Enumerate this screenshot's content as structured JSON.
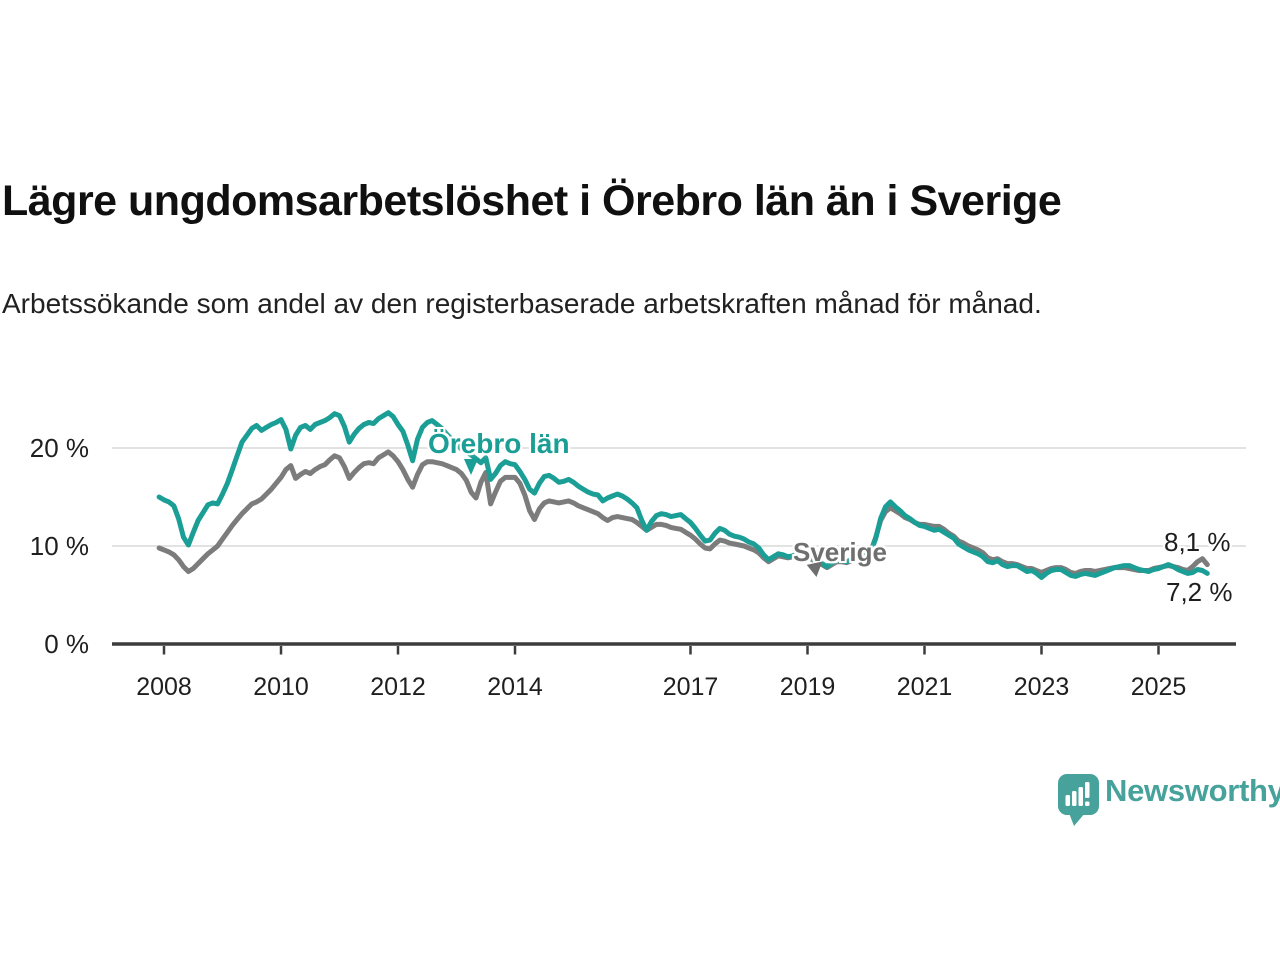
{
  "title": "Lägre ungdomsarbetslöshet i Örebro län än i Sverige",
  "subtitle": "Arbetssökande som andel av den registerbaserade arbetskraften månad för månad.",
  "branding": {
    "logo_text": "Newsworthy",
    "brand_color": "#46a29b"
  },
  "chart_data": {
    "type": "line",
    "x_start_year": 2007.917,
    "x_step_months": 1,
    "xlim": [
      2007.8,
      2026.2
    ],
    "ylim": [
      0,
      25
    ],
    "grid": true,
    "x_axis": {
      "ticks": [
        2008,
        2010,
        2012,
        2014,
        2017,
        2019,
        2021,
        2023,
        2025
      ]
    },
    "y_axis": {
      "ticks": [
        {
          "value": 0,
          "label": "0 %"
        },
        {
          "value": 10,
          "label": "10 %"
        },
        {
          "value": 20,
          "label": "20 %"
        }
      ]
    },
    "series": [
      {
        "name": "Sverige",
        "color": "#7c7c7c",
        "end_label": "8,1 %",
        "values": [
          9.8,
          9.6,
          9.4,
          9.1,
          8.6,
          7.9,
          7.4,
          7.7,
          8.2,
          8.7,
          9.2,
          9.6,
          10.0,
          10.7,
          11.4,
          12.1,
          12.7,
          13.3,
          13.8,
          14.3,
          14.5,
          14.8,
          15.3,
          15.8,
          16.4,
          17.0,
          17.8,
          18.2,
          16.9,
          17.3,
          17.6,
          17.4,
          17.8,
          18.1,
          18.3,
          18.8,
          19.2,
          19.0,
          18.1,
          16.9,
          17.5,
          18.0,
          18.4,
          18.5,
          18.4,
          19.0,
          19.3,
          19.6,
          19.2,
          18.6,
          17.8,
          16.8,
          16.0,
          17.3,
          18.3,
          18.6,
          18.6,
          18.5,
          18.4,
          18.2,
          18.0,
          17.8,
          17.4,
          16.7,
          15.5,
          14.9,
          16.5,
          17.5,
          14.3,
          15.5,
          16.6,
          17.0,
          17.0,
          17.0,
          16.4,
          15.2,
          13.6,
          12.7,
          13.8,
          14.4,
          14.6,
          14.5,
          14.4,
          14.5,
          14.6,
          14.4,
          14.1,
          13.9,
          13.7,
          13.5,
          13.3,
          12.9,
          12.6,
          12.9,
          13.0,
          12.9,
          12.8,
          12.7,
          12.4,
          12.0,
          11.6,
          11.9,
          12.2,
          12.2,
          12.1,
          11.9,
          11.8,
          11.7,
          11.4,
          11.1,
          10.7,
          10.2,
          9.8,
          9.7,
          10.2,
          10.6,
          10.5,
          10.3,
          10.2,
          10.1,
          10.0,
          9.8,
          9.6,
          9.3,
          8.8,
          8.4,
          8.7,
          9.0,
          8.9,
          8.8,
          8.9,
          9.1,
          9.0,
          8.8,
          8.6,
          8.4,
          8.1,
          7.8,
          8.1,
          8.4,
          8.4,
          8.3,
          8.5,
          8.7,
          8.9,
          9.1,
          9.5,
          10.9,
          12.6,
          13.5,
          13.9,
          13.6,
          13.3,
          12.9,
          12.7,
          12.4,
          12.2,
          12.2,
          12.1,
          12.0,
          12.0,
          11.7,
          11.3,
          11.0,
          10.5,
          10.3,
          10.0,
          9.8,
          9.6,
          9.3,
          8.8,
          8.6,
          8.7,
          8.4,
          8.2,
          8.2,
          8.1,
          7.9,
          7.7,
          7.7,
          7.5,
          7.3,
          7.5,
          7.7,
          7.8,
          7.8,
          7.6,
          7.3,
          7.2,
          7.4,
          7.5,
          7.5,
          7.4,
          7.5,
          7.6,
          7.7,
          7.8,
          7.8,
          7.8,
          7.7,
          7.6,
          7.5,
          7.5,
          7.5,
          7.7,
          7.8,
          7.9,
          8.0,
          7.9,
          7.8,
          7.6,
          7.5,
          7.9,
          8.4,
          8.7,
          8.1
        ]
      },
      {
        "name": "Örebro län",
        "color": "#1a9e95",
        "end_label": "7,2 %",
        "values": [
          15.0,
          14.7,
          14.5,
          14.1,
          12.8,
          10.9,
          10.1,
          11.4,
          12.6,
          13.4,
          14.2,
          14.4,
          14.3,
          15.3,
          16.4,
          17.8,
          19.2,
          20.6,
          21.3,
          22.0,
          22.3,
          21.8,
          22.1,
          22.4,
          22.6,
          22.9,
          21.9,
          19.9,
          21.3,
          22.1,
          22.3,
          21.9,
          22.4,
          22.6,
          22.8,
          23.1,
          23.5,
          23.3,
          22.2,
          20.6,
          21.4,
          22.0,
          22.4,
          22.6,
          22.5,
          23.0,
          23.3,
          23.6,
          23.2,
          22.4,
          21.7,
          20.3,
          18.7,
          20.9,
          22.1,
          22.6,
          22.8,
          22.4,
          22.0,
          21.4,
          20.9,
          20.4,
          19.9,
          19.6,
          19.3,
          18.9,
          18.5,
          19.0,
          16.8,
          17.4,
          18.2,
          18.6,
          18.4,
          18.3,
          17.6,
          16.8,
          15.8,
          15.4,
          16.4,
          17.1,
          17.2,
          16.9,
          16.5,
          16.6,
          16.8,
          16.5,
          16.1,
          15.8,
          15.5,
          15.3,
          15.2,
          14.6,
          14.9,
          15.1,
          15.3,
          15.1,
          14.8,
          14.4,
          13.9,
          12.6,
          11.6,
          12.5,
          13.1,
          13.3,
          13.2,
          13.0,
          13.1,
          13.2,
          12.8,
          12.4,
          11.8,
          11.1,
          10.5,
          10.6,
          11.3,
          11.8,
          11.6,
          11.2,
          11.0,
          10.9,
          10.7,
          10.4,
          10.2,
          9.8,
          9.1,
          8.6,
          8.9,
          9.2,
          9.1,
          8.9,
          9.0,
          9.3,
          9.1,
          8.9,
          8.7,
          8.5,
          8.2,
          7.9,
          8.3,
          8.6,
          8.5,
          8.4,
          8.6,
          8.8,
          8.9,
          9.0,
          9.4,
          10.8,
          12.8,
          14.0,
          14.5,
          14.0,
          13.6,
          13.1,
          12.8,
          12.4,
          12.1,
          12.0,
          11.8,
          11.6,
          11.7,
          11.4,
          11.1,
          10.8,
          10.2,
          9.9,
          9.6,
          9.4,
          9.2,
          8.9,
          8.4,
          8.3,
          8.5,
          8.1,
          7.9,
          8.0,
          8.0,
          7.7,
          7.4,
          7.5,
          7.2,
          6.8,
          7.2,
          7.5,
          7.6,
          7.6,
          7.3,
          7.0,
          6.9,
          7.1,
          7.2,
          7.1,
          7.0,
          7.2,
          7.4,
          7.6,
          7.8,
          7.9,
          8.0,
          8.0,
          7.8,
          7.6,
          7.5,
          7.4,
          7.6,
          7.7,
          7.9,
          8.1,
          7.9,
          7.6,
          7.4,
          7.2,
          7.3,
          7.6,
          7.5,
          7.2
        ]
      }
    ]
  }
}
